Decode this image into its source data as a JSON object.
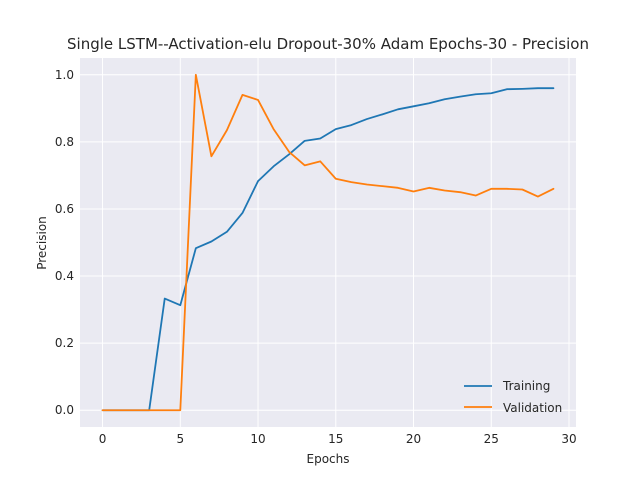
{
  "chart_data": {
    "type": "line",
    "title": "Single LSTM--Activation-elu Dropout-30% Adam Epochs-30 - Precision",
    "xlabel": "Epochs",
    "ylabel": "Precision",
    "xlim": [
      -1.45,
      30.45
    ],
    "ylim": [
      -0.05,
      1.05
    ],
    "xticks": [
      0,
      5,
      10,
      15,
      20,
      25,
      30
    ],
    "yticks": [
      0.0,
      0.2,
      0.4,
      0.6,
      0.8,
      1.0
    ],
    "ytick_labels": [
      "0.0",
      "0.2",
      "0.4",
      "0.6",
      "0.8",
      "1.0"
    ],
    "grid": true,
    "legend_position": "lower-right",
    "x": [
      0,
      1,
      2,
      3,
      4,
      5,
      6,
      7,
      8,
      9,
      10,
      11,
      12,
      13,
      14,
      15,
      16,
      17,
      18,
      19,
      20,
      21,
      22,
      23,
      24,
      25,
      26,
      27,
      28,
      29
    ],
    "series": [
      {
        "name": "Training",
        "color": "#1f77b4",
        "values": [
          0.0,
          0.0,
          0.0,
          0.0,
          0.333,
          0.313,
          0.483,
          0.503,
          0.532,
          0.588,
          0.683,
          0.727,
          0.763,
          0.803,
          0.81,
          0.838,
          0.85,
          0.868,
          0.882,
          0.897,
          0.906,
          0.915,
          0.927,
          0.935,
          0.942,
          0.945,
          0.957,
          0.958,
          0.96,
          0.96
        ]
      },
      {
        "name": "Validation",
        "color": "#ff7f0e",
        "values": [
          0.0,
          0.0,
          0.0,
          0.0,
          0.0,
          0.0,
          1.0,
          0.757,
          0.835,
          0.94,
          0.925,
          0.838,
          0.77,
          0.73,
          0.742,
          0.69,
          0.68,
          0.673,
          0.668,
          0.663,
          0.652,
          0.663,
          0.655,
          0.65,
          0.64,
          0.66,
          0.66,
          0.658,
          0.637,
          0.66
        ]
      }
    ]
  }
}
